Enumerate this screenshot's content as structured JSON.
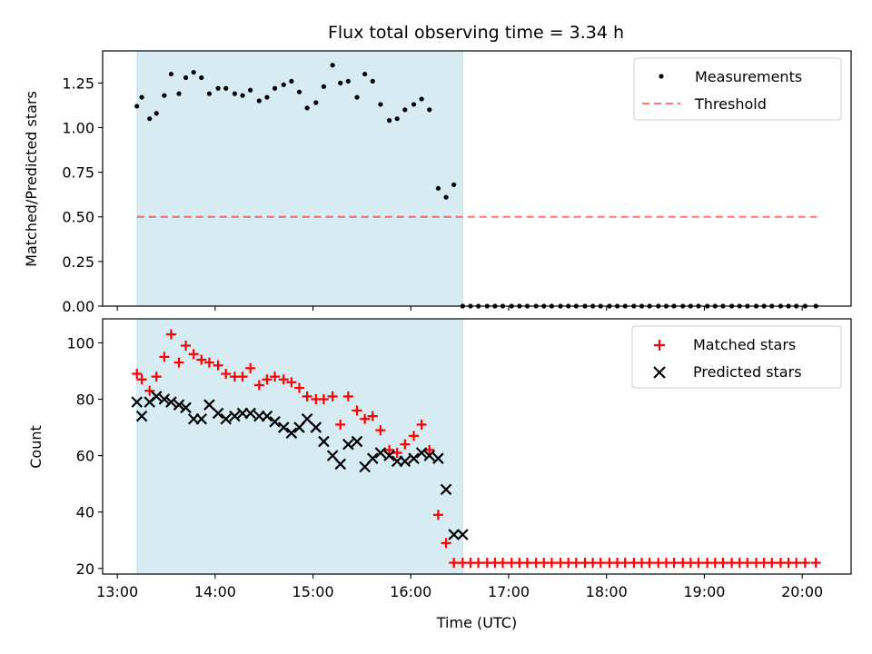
{
  "chart_data": {
    "type": "scatter",
    "title": "Flux total observing time = 3.34 h",
    "xlabel": "Time (UTC)",
    "x_unit": "hours of day (UTC)",
    "xlim": [
      12.85,
      20.5
    ],
    "x_ticks": [
      13,
      14,
      15,
      16,
      17,
      18,
      19,
      20
    ],
    "x_tick_labels": [
      "13:00",
      "14:00",
      "15:00",
      "16:00",
      "17:00",
      "18:00",
      "19:00",
      "20:00"
    ],
    "observing_span": {
      "start": 13.2,
      "end": 16.53
    },
    "top": {
      "ylabel": "Matched/Predicted stars",
      "ylim": [
        0,
        1.43
      ],
      "y_ticks": [
        0,
        0.25,
        0.5,
        0.75,
        1.0,
        1.25
      ],
      "y_tick_labels": [
        "0.00",
        "0.25",
        "0.50",
        "0.75",
        "1.00",
        "1.25"
      ],
      "legend": {
        "measurements": "Measurements",
        "threshold": "Threshold",
        "placement": "upper right"
      },
      "threshold": {
        "value": 0.5,
        "x_range": [
          13.2,
          20.15
        ]
      },
      "measurements": {
        "x": [
          13.2,
          13.25,
          13.33,
          13.4,
          13.48,
          13.55,
          13.63,
          13.7,
          13.78,
          13.86,
          13.94,
          14.03,
          14.11,
          14.2,
          14.28,
          14.36,
          14.45,
          14.53,
          14.61,
          14.7,
          14.78,
          14.86,
          14.94,
          15.03,
          15.11,
          15.2,
          15.28,
          15.36,
          15.45,
          15.53,
          15.61,
          15.69,
          15.78,
          15.86,
          15.94,
          16.03,
          16.11,
          16.19,
          16.28,
          16.36,
          16.44,
          16.53,
          16.61,
          16.69,
          16.78,
          16.86,
          16.94,
          17.03,
          17.11,
          17.19,
          17.28,
          17.36,
          17.44,
          17.53,
          17.61,
          17.69,
          17.78,
          17.86,
          17.94,
          18.03,
          18.11,
          18.19,
          18.28,
          18.36,
          18.44,
          18.53,
          18.61,
          18.69,
          18.78,
          18.86,
          18.94,
          19.03,
          19.11,
          19.19,
          19.28,
          19.36,
          19.44,
          19.53,
          19.61,
          19.69,
          19.78,
          19.86,
          19.94,
          20.03,
          20.14
        ],
        "y": [
          1.12,
          1.17,
          1.05,
          1.08,
          1.18,
          1.3,
          1.19,
          1.28,
          1.31,
          1.28,
          1.19,
          1.22,
          1.22,
          1.19,
          1.18,
          1.21,
          1.15,
          1.17,
          1.22,
          1.24,
          1.26,
          1.2,
          1.11,
          1.14,
          1.23,
          1.35,
          1.25,
          1.26,
          1.17,
          1.3,
          1.26,
          1.13,
          1.04,
          1.05,
          1.1,
          1.13,
          1.16,
          1.1,
          0.66,
          0.61,
          0.68,
          0,
          0,
          0,
          0,
          0,
          0,
          0,
          0,
          0,
          0,
          0,
          0,
          0,
          0,
          0,
          0,
          0,
          0,
          0,
          0,
          0,
          0,
          0,
          0,
          0,
          0,
          0,
          0,
          0,
          0,
          0,
          0,
          0,
          0,
          0,
          0,
          0,
          0,
          0,
          0,
          0,
          0,
          0,
          0
        ]
      }
    },
    "bottom": {
      "ylabel": "Count",
      "ylim": [
        18,
        108.5
      ],
      "y_ticks": [
        20,
        40,
        60,
        80,
        100
      ],
      "y_tick_labels": [
        "20",
        "40",
        "60",
        "80",
        "100"
      ],
      "legend": {
        "matched": "Matched stars",
        "predicted": "Predicted stars",
        "placement": "upper right"
      },
      "matched": {
        "x": [
          13.2,
          13.25,
          13.33,
          13.4,
          13.48,
          13.55,
          13.63,
          13.7,
          13.78,
          13.86,
          13.94,
          14.03,
          14.11,
          14.2,
          14.28,
          14.36,
          14.45,
          14.53,
          14.61,
          14.7,
          14.78,
          14.86,
          14.94,
          15.03,
          15.11,
          15.2,
          15.28,
          15.36,
          15.45,
          15.53,
          15.61,
          15.69,
          15.78,
          15.86,
          15.94,
          16.03,
          16.11,
          16.19,
          16.28,
          16.36,
          16.44,
          16.53,
          16.61,
          16.69,
          16.78,
          16.86,
          16.94,
          17.03,
          17.11,
          17.19,
          17.28,
          17.36,
          17.44,
          17.53,
          17.61,
          17.69,
          17.78,
          17.86,
          17.94,
          18.03,
          18.11,
          18.19,
          18.28,
          18.36,
          18.44,
          18.53,
          18.61,
          18.69,
          18.78,
          18.86,
          18.94,
          19.03,
          19.11,
          19.19,
          19.28,
          19.36,
          19.44,
          19.53,
          19.61,
          19.69,
          19.78,
          19.86,
          19.94,
          20.03,
          20.14
        ],
        "y": [
          89,
          87,
          83,
          88,
          95,
          103,
          93,
          99,
          96,
          94,
          93,
          92,
          89,
          88,
          88,
          91,
          85,
          87,
          88,
          87,
          86,
          84,
          81,
          80,
          80,
          81,
          71,
          81,
          76,
          73,
          74,
          69,
          62,
          61,
          64,
          67,
          71,
          62,
          39,
          29,
          22,
          22,
          22,
          22,
          22,
          22,
          22,
          22,
          22,
          22,
          22,
          22,
          22,
          22,
          22,
          22,
          22,
          22,
          22,
          22,
          22,
          22,
          22,
          22,
          22,
          22,
          22,
          22,
          22,
          22,
          22,
          22,
          22,
          22,
          22,
          22,
          22,
          22,
          22,
          22,
          22,
          22,
          22,
          22,
          22
        ]
      },
      "predicted": {
        "x": [
          13.2,
          13.25,
          13.33,
          13.4,
          13.48,
          13.55,
          13.63,
          13.7,
          13.78,
          13.86,
          13.94,
          14.03,
          14.11,
          14.2,
          14.28,
          14.36,
          14.45,
          14.53,
          14.61,
          14.7,
          14.78,
          14.86,
          14.94,
          15.03,
          15.11,
          15.2,
          15.28,
          15.36,
          15.45,
          15.53,
          15.61,
          15.69,
          15.78,
          15.86,
          15.94,
          16.03,
          16.11,
          16.19,
          16.28,
          16.36,
          16.44,
          16.53
        ],
        "y": [
          79,
          74,
          79,
          81,
          80,
          79,
          78,
          77,
          73,
          73,
          78,
          75,
          73,
          74,
          75,
          75,
          74,
          74,
          72,
          70,
          68,
          70,
          73,
          70,
          65,
          60,
          57,
          64,
          65,
          56,
          59,
          61,
          60,
          58,
          58,
          59,
          61,
          60,
          59,
          48,
          32,
          32
        ]
      }
    }
  }
}
